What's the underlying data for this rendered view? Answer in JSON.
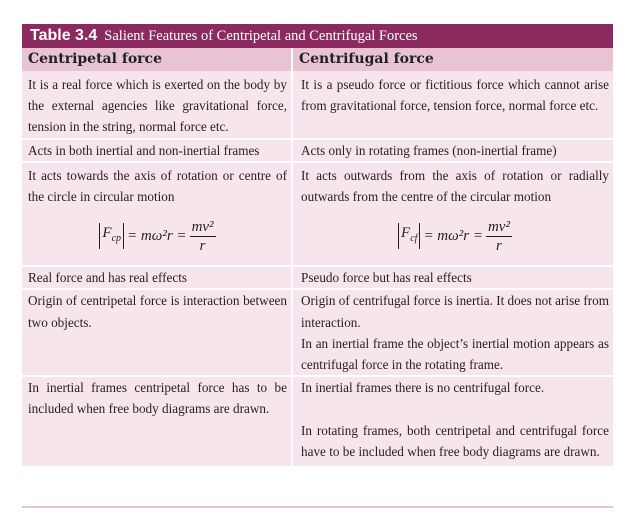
{
  "table": {
    "number": "Table 3.4",
    "title": "Salient Features of Centripetal and Centrifugal Forces",
    "headers": [
      "Centripetal force",
      "Centrifugal force"
    ],
    "rows": [
      [
        "It is a real force which is exerted on the body by the external agencies like gravitational force, tension in the string, normal force etc.",
        "It is a pseudo force or fictitious force which cannot arise from gravitational force, tension force, normal force etc."
      ],
      [
        "Acts in both inertial and non-inertial frames",
        "Acts only in rotating frames (non-inertial frame)"
      ],
      [
        "It acts towards the axis of rotation or centre of the circle in circular motion",
        "It acts outwards from the axis of rotation or radially outwards from the centre of the circular motion"
      ],
      [
        "Real force and has real effects",
        "Pseudo force but has real effects"
      ],
      [
        "Origin of centripetal force is interaction between two objects.",
        "Origin of centrifugal force is inertia. It does not arise from interaction."
      ],
      [
        "",
        "In an inertial frame the object’s inertial motion appears as centrifugal force in the rotating frame."
      ],
      [
        "In inertial frames centripetal force has to be included when free body diagrams are drawn.",
        "In inertial frames there is no centrifugal force."
      ],
      [
        "",
        "In rotating frames, both centripetal and centrifugal force have to be included when free body diagrams are drawn."
      ]
    ],
    "formula_left": {
      "F": "F",
      "sub": "cp",
      "mid": "= mω²r =",
      "num": "mv²",
      "den": "r"
    },
    "formula_right": {
      "F": "F",
      "sub": "cf",
      "mid": "= mω²r =",
      "num": "mv²",
      "den": "r"
    }
  }
}
